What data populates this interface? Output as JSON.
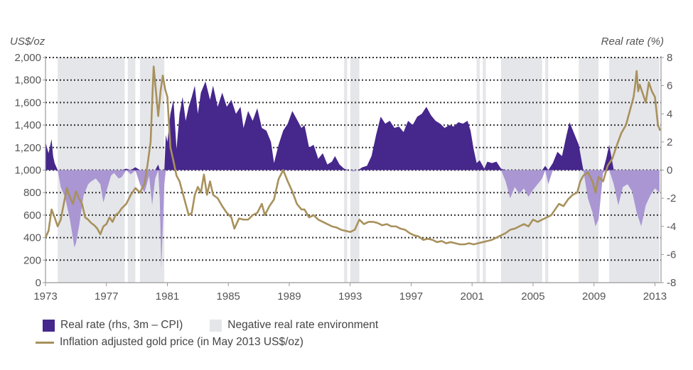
{
  "chart_data": {
    "type": "area",
    "title": "",
    "left_axis_label": "US$/oz",
    "right_axis_label": "Real rate (%)",
    "xlim": [
      1973,
      2013.4
    ],
    "ylim_left": [
      0,
      2000
    ],
    "ylim_right": [
      -8,
      8
    ],
    "x_ticks": [
      1973,
      1977,
      1981,
      1985,
      1989,
      1993,
      1997,
      2001,
      2005,
      2009,
      2013
    ],
    "x_tick_labels": [
      "1973",
      "1977",
      "1981",
      "1985",
      "1989",
      "1993",
      "1997",
      "2001",
      "2005",
      "2009",
      "2013"
    ],
    "y_ticks_left": [
      0,
      200,
      400,
      600,
      800,
      1000,
      1200,
      1400,
      1600,
      1800,
      2000
    ],
    "y_tick_labels_left": [
      "0",
      "200",
      "400",
      "600",
      "800",
      "1,000",
      "1,200",
      "1,400",
      "1,600",
      "1,800",
      "2,000"
    ],
    "y_ticks_right": [
      -8,
      -6,
      -4,
      -2,
      0,
      2,
      4,
      6,
      8
    ],
    "y_tick_labels_right": [
      "-8",
      "-6",
      "-4",
      "-2",
      "0",
      "2",
      "4",
      "6",
      "8"
    ],
    "grid": "horizontal-dotted",
    "legend_position": "bottom-left",
    "colors": {
      "real_rate_positive": "#46278c",
      "real_rate_negative": "#a996d2",
      "negative_env": "#e5e6ea",
      "gold_line": "#a8915c",
      "grid": "#333333",
      "axis": "#999999"
    },
    "legend": [
      {
        "label": "Real rate (rhs, 3m – CPI)",
        "kind": "area",
        "color": "#46278c"
      },
      {
        "label": "Negative real rate environment",
        "kind": "area",
        "color": "#e5e6ea"
      },
      {
        "label": "Inflation adjusted gold price (in May 2013 US$/oz)",
        "kind": "line",
        "color": "#a8915c"
      }
    ],
    "negative_real_rate_periods": [
      [
        1973.8,
        1978.2
      ],
      [
        1978.4,
        1978.9
      ],
      [
        1979.2,
        1980.8
      ],
      [
        1992.6,
        1992.8
      ],
      [
        1993.0,
        1993.6
      ],
      [
        2001.3,
        2001.5
      ],
      [
        2001.7,
        2001.9
      ],
      [
        2002.9,
        2005.6
      ],
      [
        2005.8,
        2006.0
      ],
      [
        2008.0,
        2009.3
      ],
      [
        2010.0,
        2013.3
      ]
    ],
    "series": [
      {
        "name": "Real rate (rhs, 3m – CPI)",
        "axis": "right",
        "x": [
          1973.0,
          1973.2,
          1973.4,
          1973.5,
          1973.6,
          1973.8,
          1974.0,
          1974.3,
          1974.6,
          1974.9,
          1975.0,
          1975.2,
          1975.5,
          1975.8,
          1976.0,
          1976.3,
          1976.6,
          1976.8,
          1977.0,
          1977.3,
          1977.5,
          1977.8,
          1978.0,
          1978.3,
          1978.6,
          1978.9,
          1979.2,
          1979.5,
          1979.8,
          1980.0,
          1980.2,
          1980.4,
          1980.5,
          1980.6,
          1980.8,
          1980.9,
          1981.0,
          1981.2,
          1981.4,
          1981.6,
          1981.8,
          1982.0,
          1982.2,
          1982.4,
          1982.6,
          1982.8,
          1983.0,
          1983.2,
          1983.5,
          1983.8,
          1984.0,
          1984.3,
          1984.6,
          1984.9,
          1985.2,
          1985.5,
          1985.8,
          1986.0,
          1986.3,
          1986.6,
          1986.9,
          1987.2,
          1987.5,
          1987.8,
          1988.0,
          1988.3,
          1988.6,
          1988.9,
          1989.2,
          1989.5,
          1989.8,
          1990.0,
          1990.3,
          1990.6,
          1990.9,
          1991.2,
          1991.5,
          1991.8,
          1992.0,
          1992.3,
          1992.6,
          1992.9,
          1993.2,
          1993.5,
          1993.8,
          1994.1,
          1994.4,
          1994.7,
          1995.0,
          1995.3,
          1995.6,
          1995.9,
          1996.2,
          1996.5,
          1996.8,
          1997.1,
          1997.4,
          1997.7,
          1998.0,
          1998.3,
          1998.6,
          1998.9,
          1999.2,
          1999.5,
          1999.8,
          2000.1,
          2000.4,
          2000.7,
          2000.9,
          2001.1,
          2001.3,
          2001.5,
          2001.8,
          2002.0,
          2002.3,
          2002.6,
          2002.9,
          2003.2,
          2003.5,
          2003.8,
          2004.1,
          2004.4,
          2004.7,
          2005.0,
          2005.3,
          2005.6,
          2005.8,
          2006.0,
          2006.3,
          2006.6,
          2006.9,
          2007.2,
          2007.4,
          2007.7,
          2008.0,
          2008.3,
          2008.6,
          2008.9,
          2009.1,
          2009.3,
          2009.6,
          2009.8,
          2010.0,
          2010.3,
          2010.6,
          2010.9,
          2011.2,
          2011.5,
          2011.8,
          2012.1,
          2012.4,
          2012.7,
          2013.0,
          2013.3
        ],
        "values": [
          2.0,
          1.2,
          2.2,
          1.0,
          0.5,
          0.0,
          -1.2,
          -2.0,
          -3.5,
          -5.5,
          -5.2,
          -4.0,
          -1.8,
          -1.0,
          -0.8,
          -0.6,
          -1.0,
          -2.3,
          -1.5,
          -0.4,
          -0.2,
          -0.6,
          -0.5,
          0.1,
          -0.3,
          0.2,
          -1.0,
          -1.6,
          -0.4,
          -2.5,
          -0.6,
          0.4,
          -2.0,
          -7.0,
          -1.0,
          2.5,
          2.0,
          4.0,
          5.0,
          1.5,
          4.0,
          5.2,
          3.5,
          4.5,
          5.2,
          6.0,
          4.0,
          5.5,
          6.3,
          5.0,
          6.0,
          4.5,
          5.5,
          4.5,
          5.0,
          4.0,
          4.5,
          3.0,
          4.2,
          3.5,
          4.4,
          3.0,
          2.8,
          2.0,
          0.5,
          1.8,
          2.8,
          3.3,
          4.2,
          3.6,
          3.0,
          3.2,
          1.6,
          1.8,
          0.8,
          1.2,
          0.4,
          0.6,
          1.0,
          0.4,
          0.1,
          0.0,
          -0.1,
          0.0,
          0.2,
          0.3,
          1.0,
          2.5,
          3.8,
          3.3,
          3.5,
          3.0,
          3.1,
          2.7,
          3.5,
          3.2,
          3.8,
          4.0,
          4.5,
          3.9,
          3.5,
          3.3,
          3.0,
          3.2,
          3.1,
          3.4,
          3.3,
          3.5,
          2.8,
          1.5,
          0.5,
          0.7,
          0.1,
          0.6,
          0.5,
          0.6,
          0.1,
          -0.8,
          -2.0,
          -1.2,
          -1.7,
          -1.3,
          -1.9,
          -1.4,
          -1.0,
          -0.6,
          0.3,
          -1.0,
          0.5,
          1.3,
          1.0,
          2.5,
          3.4,
          2.6,
          1.8,
          0.0,
          -2.0,
          -3.0,
          -4.0,
          -3.5,
          -0.2,
          0.8,
          1.8,
          -1.0,
          -2.5,
          -1.2,
          -1.0,
          -1.5,
          -3.0,
          -4.0,
          -2.5,
          -1.8,
          -1.3,
          -1.6
        ],
        "fill_colors": [
          "#46278c",
          "#a996d2"
        ]
      },
      {
        "name": "Inflation adjusted gold price (in May 2013 US$/oz)",
        "axis": "left",
        "x": [
          1973.0,
          1973.2,
          1973.4,
          1973.6,
          1973.8,
          1974.0,
          1974.2,
          1974.4,
          1974.6,
          1974.8,
          1975.0,
          1975.2,
          1975.4,
          1975.6,
          1975.8,
          1976.0,
          1976.2,
          1976.4,
          1976.6,
          1976.8,
          1977.0,
          1977.2,
          1977.4,
          1977.6,
          1977.8,
          1978.0,
          1978.3,
          1978.6,
          1978.9,
          1979.2,
          1979.5,
          1979.7,
          1979.9,
          1980.0,
          1980.1,
          1980.25,
          1980.4,
          1980.55,
          1980.7,
          1980.85,
          1981.0,
          1981.2,
          1981.4,
          1981.6,
          1981.8,
          1982.0,
          1982.2,
          1982.4,
          1982.6,
          1982.8,
          1983.0,
          1983.2,
          1983.4,
          1983.6,
          1983.8,
          1984.0,
          1984.3,
          1984.6,
          1984.9,
          1985.2,
          1985.4,
          1985.7,
          1986.0,
          1986.3,
          1986.6,
          1986.9,
          1987.2,
          1987.4,
          1987.7,
          1988.0,
          1988.3,
          1988.6,
          1988.9,
          1989.2,
          1989.5,
          1989.8,
          1990.0,
          1990.3,
          1990.6,
          1990.9,
          1991.2,
          1991.5,
          1991.8,
          1992.1,
          1992.4,
          1992.7,
          1993.0,
          1993.3,
          1993.6,
          1993.9,
          1994.2,
          1994.5,
          1994.8,
          1995.1,
          1995.4,
          1995.7,
          1996.0,
          1996.3,
          1996.6,
          1996.9,
          1997.2,
          1997.5,
          1997.8,
          1998.1,
          1998.4,
          1998.7,
          1999.0,
          1999.3,
          1999.6,
          1999.9,
          2000.2,
          2000.5,
          2000.8,
          2001.1,
          2001.4,
          2001.7,
          2002.0,
          2002.3,
          2002.6,
          2002.9,
          2003.2,
          2003.5,
          2003.8,
          2004.1,
          2004.4,
          2004.7,
          2005.0,
          2005.3,
          2005.6,
          2005.9,
          2006.2,
          2006.4,
          2006.7,
          2007.0,
          2007.3,
          2007.6,
          2007.9,
          2008.1,
          2008.3,
          2008.6,
          2008.9,
          2009.1,
          2009.3,
          2009.6,
          2009.9,
          2010.2,
          2010.5,
          2010.8,
          2011.1,
          2011.4,
          2011.6,
          2011.7,
          2011.8,
          2011.9,
          2012.0,
          2012.2,
          2012.4,
          2012.6,
          2012.8,
          2013.0,
          2013.2,
          2013.35
        ],
        "values": [
          400,
          460,
          650,
          580,
          500,
          560,
          700,
          840,
          760,
          700,
          810,
          750,
          700,
          580,
          560,
          530,
          510,
          480,
          430,
          500,
          520,
          580,
          540,
          600,
          620,
          660,
          700,
          780,
          840,
          800,
          880,
          1050,
          1250,
          1600,
          1920,
          1700,
          1480,
          1700,
          1840,
          1720,
          1650,
          1200,
          1080,
          950,
          900,
          800,
          700,
          600,
          620,
          780,
          850,
          800,
          960,
          780,
          900,
          780,
          750,
          680,
          620,
          580,
          480,
          570,
          560,
          560,
          600,
          620,
          700,
          600,
          680,
          740,
          920,
          1000,
          900,
          810,
          700,
          650,
          650,
          580,
          600,
          560,
          540,
          520,
          500,
          490,
          470,
          460,
          450,
          470,
          560,
          520,
          540,
          540,
          530,
          510,
          520,
          500,
          500,
          480,
          470,
          440,
          420,
          410,
          380,
          390,
          380,
          360,
          370,
          350,
          360,
          350,
          340,
          340,
          350,
          340,
          350,
          360,
          370,
          380,
          400,
          420,
          440,
          470,
          480,
          500,
          520,
          500,
          560,
          540,
          560,
          580,
          600,
          640,
          700,
          680,
          740,
          780,
          800,
          900,
          950,
          980,
          900,
          800,
          940,
          900,
          1040,
          1100,
          1220,
          1330,
          1400,
          1550,
          1650,
          1750,
          1880,
          1700,
          1760,
          1680,
          1600,
          1780,
          1700,
          1650,
          1400,
          1350
        ]
      }
    ]
  }
}
